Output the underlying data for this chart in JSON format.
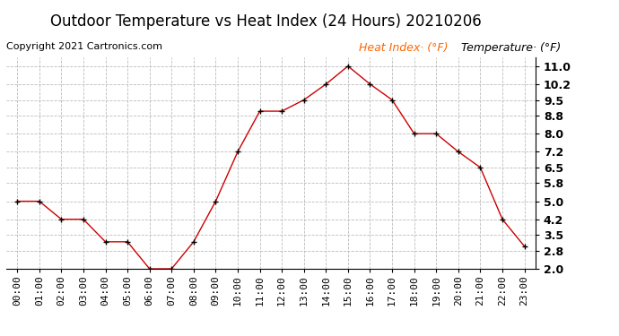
{
  "title": "Outdoor Temperature vs Heat Index (24 Hours) 20210206",
  "copyright": "Copyright 2021 Cartronics.com",
  "legend_heat": "Heat Index· (°F)",
  "legend_temp": "Temperature· (°F)",
  "hours": [
    "00:00",
    "01:00",
    "02:00",
    "03:00",
    "04:00",
    "05:00",
    "06:00",
    "07:00",
    "08:00",
    "09:00",
    "10:00",
    "11:00",
    "12:00",
    "13:00",
    "14:00",
    "15:00",
    "16:00",
    "17:00",
    "18:00",
    "19:00",
    "20:00",
    "21:00",
    "22:00",
    "23:00"
  ],
  "temperature": [
    5.0,
    5.0,
    4.2,
    4.2,
    3.2,
    3.2,
    2.0,
    2.0,
    3.2,
    5.0,
    7.2,
    9.0,
    9.0,
    9.5,
    10.2,
    11.0,
    10.2,
    9.5,
    8.0,
    8.0,
    7.2,
    6.5,
    4.2,
    3.0
  ],
  "line_color": "#cc0000",
  "marker_color": "#000000",
  "title_fontsize": 12,
  "copyright_fontsize": 8,
  "legend_fontsize": 9,
  "tick_fontsize": 8,
  "ytick_fontsize": 9,
  "background_color": "#ffffff",
  "grid_color": "#bbbbbb",
  "ylim_min": 2.0,
  "ylim_max": 11.4,
  "yticks": [
    2.0,
    2.8,
    3.5,
    4.2,
    5.0,
    5.8,
    6.5,
    7.2,
    8.0,
    8.8,
    9.5,
    10.2,
    11.0
  ],
  "legend_heat_color": "#ff6600",
  "legend_temp_color": "#000000"
}
